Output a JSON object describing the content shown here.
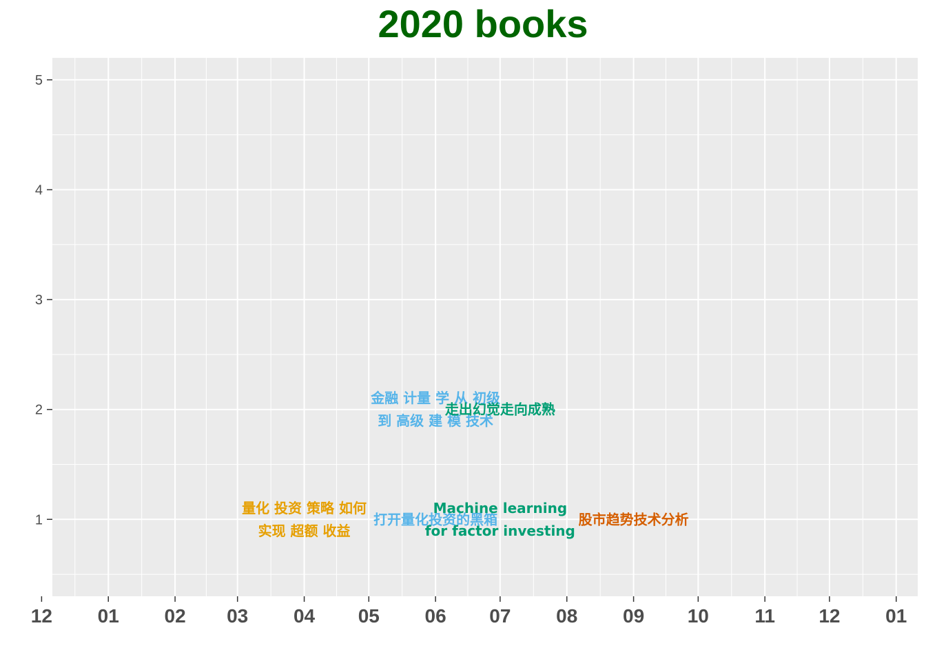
{
  "chart_data": {
    "type": "scatter",
    "title": "2020 books",
    "title_color": "#006400",
    "xlabel": "",
    "ylabel": "",
    "x_axis_type": "date",
    "xlim": [
      "2019-12-06",
      "2021-01-11"
    ],
    "ylim": [
      0.3,
      5.2
    ],
    "x_ticks": [
      {
        "date": "2019-12-01",
        "label": "12"
      },
      {
        "date": "2020-01-01",
        "label": "01"
      },
      {
        "date": "2020-02-01",
        "label": "02"
      },
      {
        "date": "2020-03-01",
        "label": "03"
      },
      {
        "date": "2020-04-01",
        "label": "04"
      },
      {
        "date": "2020-05-01",
        "label": "05"
      },
      {
        "date": "2020-06-01",
        "label": "06"
      },
      {
        "date": "2020-07-01",
        "label": "07"
      },
      {
        "date": "2020-08-01",
        "label": "08"
      },
      {
        "date": "2020-09-01",
        "label": "09"
      },
      {
        "date": "2020-10-01",
        "label": "10"
      },
      {
        "date": "2020-11-01",
        "label": "11"
      },
      {
        "date": "2020-12-01",
        "label": "12"
      },
      {
        "date": "2021-01-01",
        "label": "01"
      }
    ],
    "y_ticks": [
      1,
      2,
      3,
      4,
      5
    ],
    "grid": true,
    "background": "#ebebeb",
    "points": [
      {
        "date": "2020-04-01",
        "y": 1,
        "lines": [
          "量化 投资 策略 如何",
          "实现 超额 收益"
        ],
        "color": "#E69F00"
      },
      {
        "date": "2020-06-01",
        "y": 1,
        "lines": [
          "打开量化投资的黑箱"
        ],
        "color": "#56B4E9"
      },
      {
        "date": "2020-07-01",
        "y": 1,
        "lines": [
          "Machine learning",
          "for factor investing"
        ],
        "color": "#009E73"
      },
      {
        "date": "2020-09-01",
        "y": 1,
        "lines": [
          "股市趋势技术分析"
        ],
        "color": "#D55E00"
      },
      {
        "date": "2020-06-01",
        "y": 2,
        "lines": [
          "金融 计量 学 从 初级",
          "到 高级 建 模 技术"
        ],
        "color": "#56B4E9"
      },
      {
        "date": "2020-07-01",
        "y": 2,
        "lines": [
          "走出幻觉走向成熟"
        ],
        "color": "#009E73"
      }
    ]
  }
}
